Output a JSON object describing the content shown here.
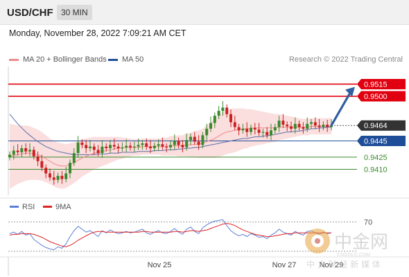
{
  "header": {
    "symbol": "USD/CHF",
    "timeframe": "30 MIN",
    "timestamp": "Monday, November 28, 2022 7:09:21 AM CET"
  },
  "legend": {
    "items": [
      {
        "label": "MA 20 + Bollinger Bands",
        "color": "#f08a8a"
      },
      {
        "label": "MA 50",
        "color": "#1f4e99"
      }
    ],
    "copyright": "Research © 2022 Trading Central"
  },
  "rsi_legend": {
    "items": [
      {
        "label": "RSI",
        "color": "#5b7fd6"
      },
      {
        "label": "9MA",
        "color": "#dd2222"
      }
    ]
  },
  "chart_data": [
    {
      "type": "candlestick",
      "title": "USD/CHF",
      "ylim": [
        0.9378,
        0.9535
      ],
      "levels": [
        {
          "value": 0.9515,
          "label": "0.9515",
          "kind": "resistance",
          "color": "#e0000f"
        },
        {
          "value": 0.95,
          "label": "0.9500",
          "kind": "resistance",
          "color": "#e0000f"
        },
        {
          "value": 0.9464,
          "label": "0.9464",
          "kind": "last-price",
          "color": "#333333"
        },
        {
          "value": 0.9445,
          "label": "0.9445",
          "kind": "pivot",
          "color": "#1f4e99"
        },
        {
          "value": 0.9425,
          "label": "0.9425",
          "kind": "support",
          "color": "#3a8a2e"
        },
        {
          "value": 0.941,
          "label": "0.9410",
          "kind": "support",
          "color": "#3a8a2e"
        }
      ],
      "x_labels": [
        "Nov 25",
        "Nov 27",
        "Nov 29"
      ],
      "close": [
        0.9428,
        0.9433,
        0.9431,
        0.9436,
        0.9432,
        0.9434,
        0.9426,
        0.942,
        0.9412,
        0.9405,
        0.94,
        0.9397,
        0.9402,
        0.9398,
        0.9405,
        0.9418,
        0.943,
        0.9443,
        0.944,
        0.9436,
        0.9438,
        0.9434,
        0.943,
        0.9438,
        0.9436,
        0.944,
        0.9438,
        0.9436,
        0.9437,
        0.9439,
        0.9437,
        0.9438,
        0.944,
        0.9442,
        0.9438,
        0.9436,
        0.9439,
        0.9441,
        0.9438,
        0.9437,
        0.944,
        0.9445,
        0.944,
        0.9437,
        0.9446,
        0.945,
        0.9444,
        0.944,
        0.9452,
        0.946,
        0.9467,
        0.9476,
        0.9482,
        0.9486,
        0.9478,
        0.9468,
        0.9462,
        0.9458,
        0.946,
        0.9456,
        0.9461,
        0.9459,
        0.9455,
        0.9456,
        0.9452,
        0.9458,
        0.9462,
        0.947,
        0.9465,
        0.9463,
        0.946,
        0.9466,
        0.9462,
        0.946,
        0.9466,
        0.9468,
        0.9464,
        0.9462,
        0.9465,
        0.9462,
        0.9464
      ],
      "ma20": [
        0.9426,
        0.9427,
        0.9428,
        0.9429,
        0.943,
        0.943,
        0.9429,
        0.9428,
        0.9426,
        0.9423,
        0.942,
        0.9417,
        0.9415,
        0.9414,
        0.9414,
        0.9416,
        0.9418,
        0.9421,
        0.9424,
        0.9426,
        0.9428,
        0.943,
        0.9431,
        0.9432,
        0.9433,
        0.9434,
        0.9435,
        0.9436,
        0.9436,
        0.9437,
        0.9437,
        0.9437,
        0.9437,
        0.9438,
        0.9438,
        0.9438,
        0.9438,
        0.9438,
        0.9438,
        0.9438,
        0.9439,
        0.9439,
        0.9439,
        0.9439,
        0.944,
        0.944,
        0.9441,
        0.9441,
        0.9442,
        0.9444,
        0.9446,
        0.9448,
        0.9451,
        0.9454,
        0.9456,
        0.9457,
        0.9458,
        0.9459,
        0.946,
        0.946,
        0.9461,
        0.9461,
        0.9461,
        0.9461,
        0.9461,
        0.9461,
        0.9461,
        0.9462,
        0.9462,
        0.9462,
        0.9462,
        0.9462,
        0.9462,
        0.9462,
        0.9462,
        0.9463,
        0.9463,
        0.9463,
        0.9463,
        0.9463,
        0.9463
      ],
      "ma50": [
        0.9478,
        0.9472,
        0.9466,
        0.9461,
        0.9456,
        0.9452,
        0.9448,
        0.9444,
        0.9441,
        0.9438,
        0.9436,
        0.9434,
        0.9432,
        0.9431,
        0.943,
        0.9429,
        0.9428,
        0.9428,
        0.9428,
        0.9428,
        0.9428,
        0.9428,
        0.9429,
        0.9429,
        0.9429,
        0.943,
        0.943,
        0.943,
        0.9431,
        0.9431,
        0.9431,
        0.9431,
        0.9432,
        0.9432,
        0.9432,
        0.9432,
        0.9433,
        0.9433,
        0.9433,
        0.9434,
        0.9434,
        0.9434,
        0.9435,
        0.9435,
        0.9436,
        0.9436,
        0.9437,
        0.9437,
        0.9438,
        0.9439,
        0.944,
        0.9441,
        0.9442,
        0.9443,
        0.9444,
        0.9445,
        0.9446,
        0.9447,
        0.9448,
        0.9448,
        0.9449,
        0.945,
        0.945,
        0.9451,
        0.9451,
        0.9452,
        0.9453,
        0.9454,
        0.9455,
        0.9456,
        0.9456,
        0.9457,
        0.9457,
        0.9458,
        0.9459,
        0.946,
        0.946,
        0.9461,
        0.9461,
        0.9462,
        0.9462
      ],
      "bb_width": [
        0.004,
        0.0038,
        0.0036,
        0.0035,
        0.0034,
        0.0033,
        0.0032,
        0.0031,
        0.003,
        0.0029,
        0.0028,
        0.0028,
        0.0028,
        0.0028,
        0.0027,
        0.0026,
        0.0025,
        0.0024,
        0.0023,
        0.0022,
        0.0021,
        0.002,
        0.0019,
        0.0018,
        0.0017,
        0.0016,
        0.0015,
        0.0014,
        0.0013,
        0.0012,
        0.0011,
        0.001,
        0.001,
        0.001,
        0.001,
        0.001,
        0.001,
        0.001,
        0.0011,
        0.0011,
        0.0012,
        0.0012,
        0.0013,
        0.0013,
        0.0014,
        0.0015,
        0.0016,
        0.0017,
        0.0018,
        0.002,
        0.0022,
        0.0024,
        0.0026,
        0.0027,
        0.0027,
        0.0027,
        0.0027,
        0.0026,
        0.0025,
        0.0024,
        0.0023,
        0.0022,
        0.0021,
        0.002,
        0.0019,
        0.0018,
        0.0017,
        0.0016,
        0.0015,
        0.0014,
        0.0013,
        0.0012,
        0.0011,
        0.001,
        0.001,
        0.001,
        0.001,
        0.001,
        0.001,
        0.001,
        0.001
      ],
      "projection": {
        "from": 0.9464,
        "to": 0.9515
      }
    },
    {
      "type": "line",
      "title": "RSI",
      "ylim": [
        25,
        78
      ],
      "level_labels": [
        {
          "value": 70,
          "label": "70"
        }
      ],
      "series": [
        {
          "name": "RSI",
          "color": "#5b7fd6",
          "values": [
            54,
            56,
            53,
            57,
            52,
            54,
            46,
            42,
            38,
            35,
            33,
            32,
            36,
            34,
            40,
            50,
            58,
            64,
            60,
            56,
            58,
            54,
            50,
            58,
            55,
            59,
            56,
            54,
            55,
            57,
            55,
            56,
            58,
            60,
            55,
            53,
            56,
            58,
            55,
            54,
            57,
            61,
            56,
            53,
            60,
            63,
            57,
            54,
            62,
            66,
            69,
            71,
            72,
            73,
            65,
            58,
            54,
            51,
            53,
            50,
            54,
            52,
            49,
            50,
            47,
            52,
            55,
            60,
            56,
            54,
            52,
            57,
            54,
            52,
            57,
            58,
            55,
            53,
            56,
            54,
            55
          ]
        },
        {
          "name": "9MA",
          "color": "#dd2222",
          "values": [
            52,
            53,
            53,
            54,
            54,
            54,
            53,
            51,
            49,
            46,
            43,
            41,
            39,
            37,
            36,
            38,
            41,
            45,
            48,
            51,
            54,
            56,
            57,
            57,
            56,
            56,
            56,
            56,
            56,
            56,
            56,
            56,
            56,
            57,
            57,
            56,
            56,
            56,
            56,
            56,
            56,
            57,
            57,
            56,
            57,
            58,
            58,
            57,
            58,
            59,
            61,
            63,
            65,
            67,
            68,
            67,
            65,
            62,
            59,
            57,
            55,
            53,
            52,
            51,
            50,
            50,
            51,
            52,
            53,
            54,
            54,
            55,
            55,
            55,
            55,
            55,
            55,
            55,
            55,
            55,
            55
          ]
        }
      ]
    }
  ]
}
